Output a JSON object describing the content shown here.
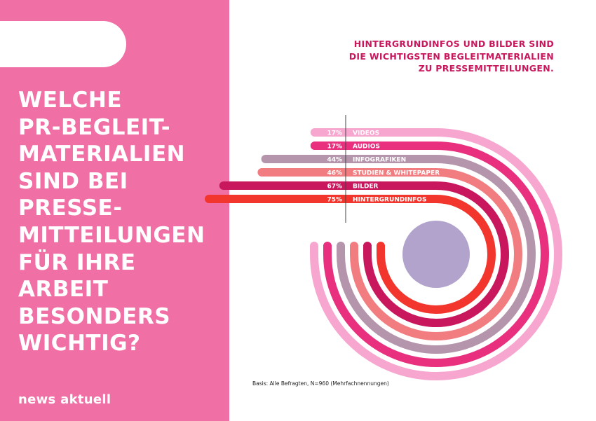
{
  "question": "WELCHE\nPR-BEGLEIT-\nMATERIALIEN\nSIND BEI\nPRESSE-\nMITTEILUNGEN\nFÜR IHRE\nARBEIT\nBESONDERS\nWICHTIG?",
  "logo": "news aktuell",
  "headline": "HINTERGRUNDINFOS UND BILDER SIND\nDIE WICHTIGSTEN BEGLEITMATERIALIEN\nZU PRESSEMITTEILUNGEN.",
  "footnote": "Basis: Alle Befragten, N=960 (Mehrfachnennungen)",
  "colors": {
    "panel": "#f06fa5",
    "headline": "#c8175d"
  },
  "chart_data": {
    "type": "bar",
    "unit": "%",
    "categories": [
      "VIDEOS",
      "AUDIOS",
      "INFOGRAFIKEN",
      "STUDIEN & WHITEPAPER",
      "BILDER",
      "HINTERGRUNDINFOS"
    ],
    "values": [
      17,
      17,
      44,
      46,
      67,
      75
    ],
    "colors": [
      "#f7a6cf",
      "#e8307f",
      "#b595ac",
      "#f27d80",
      "#c9175e",
      "#f2362e"
    ]
  }
}
